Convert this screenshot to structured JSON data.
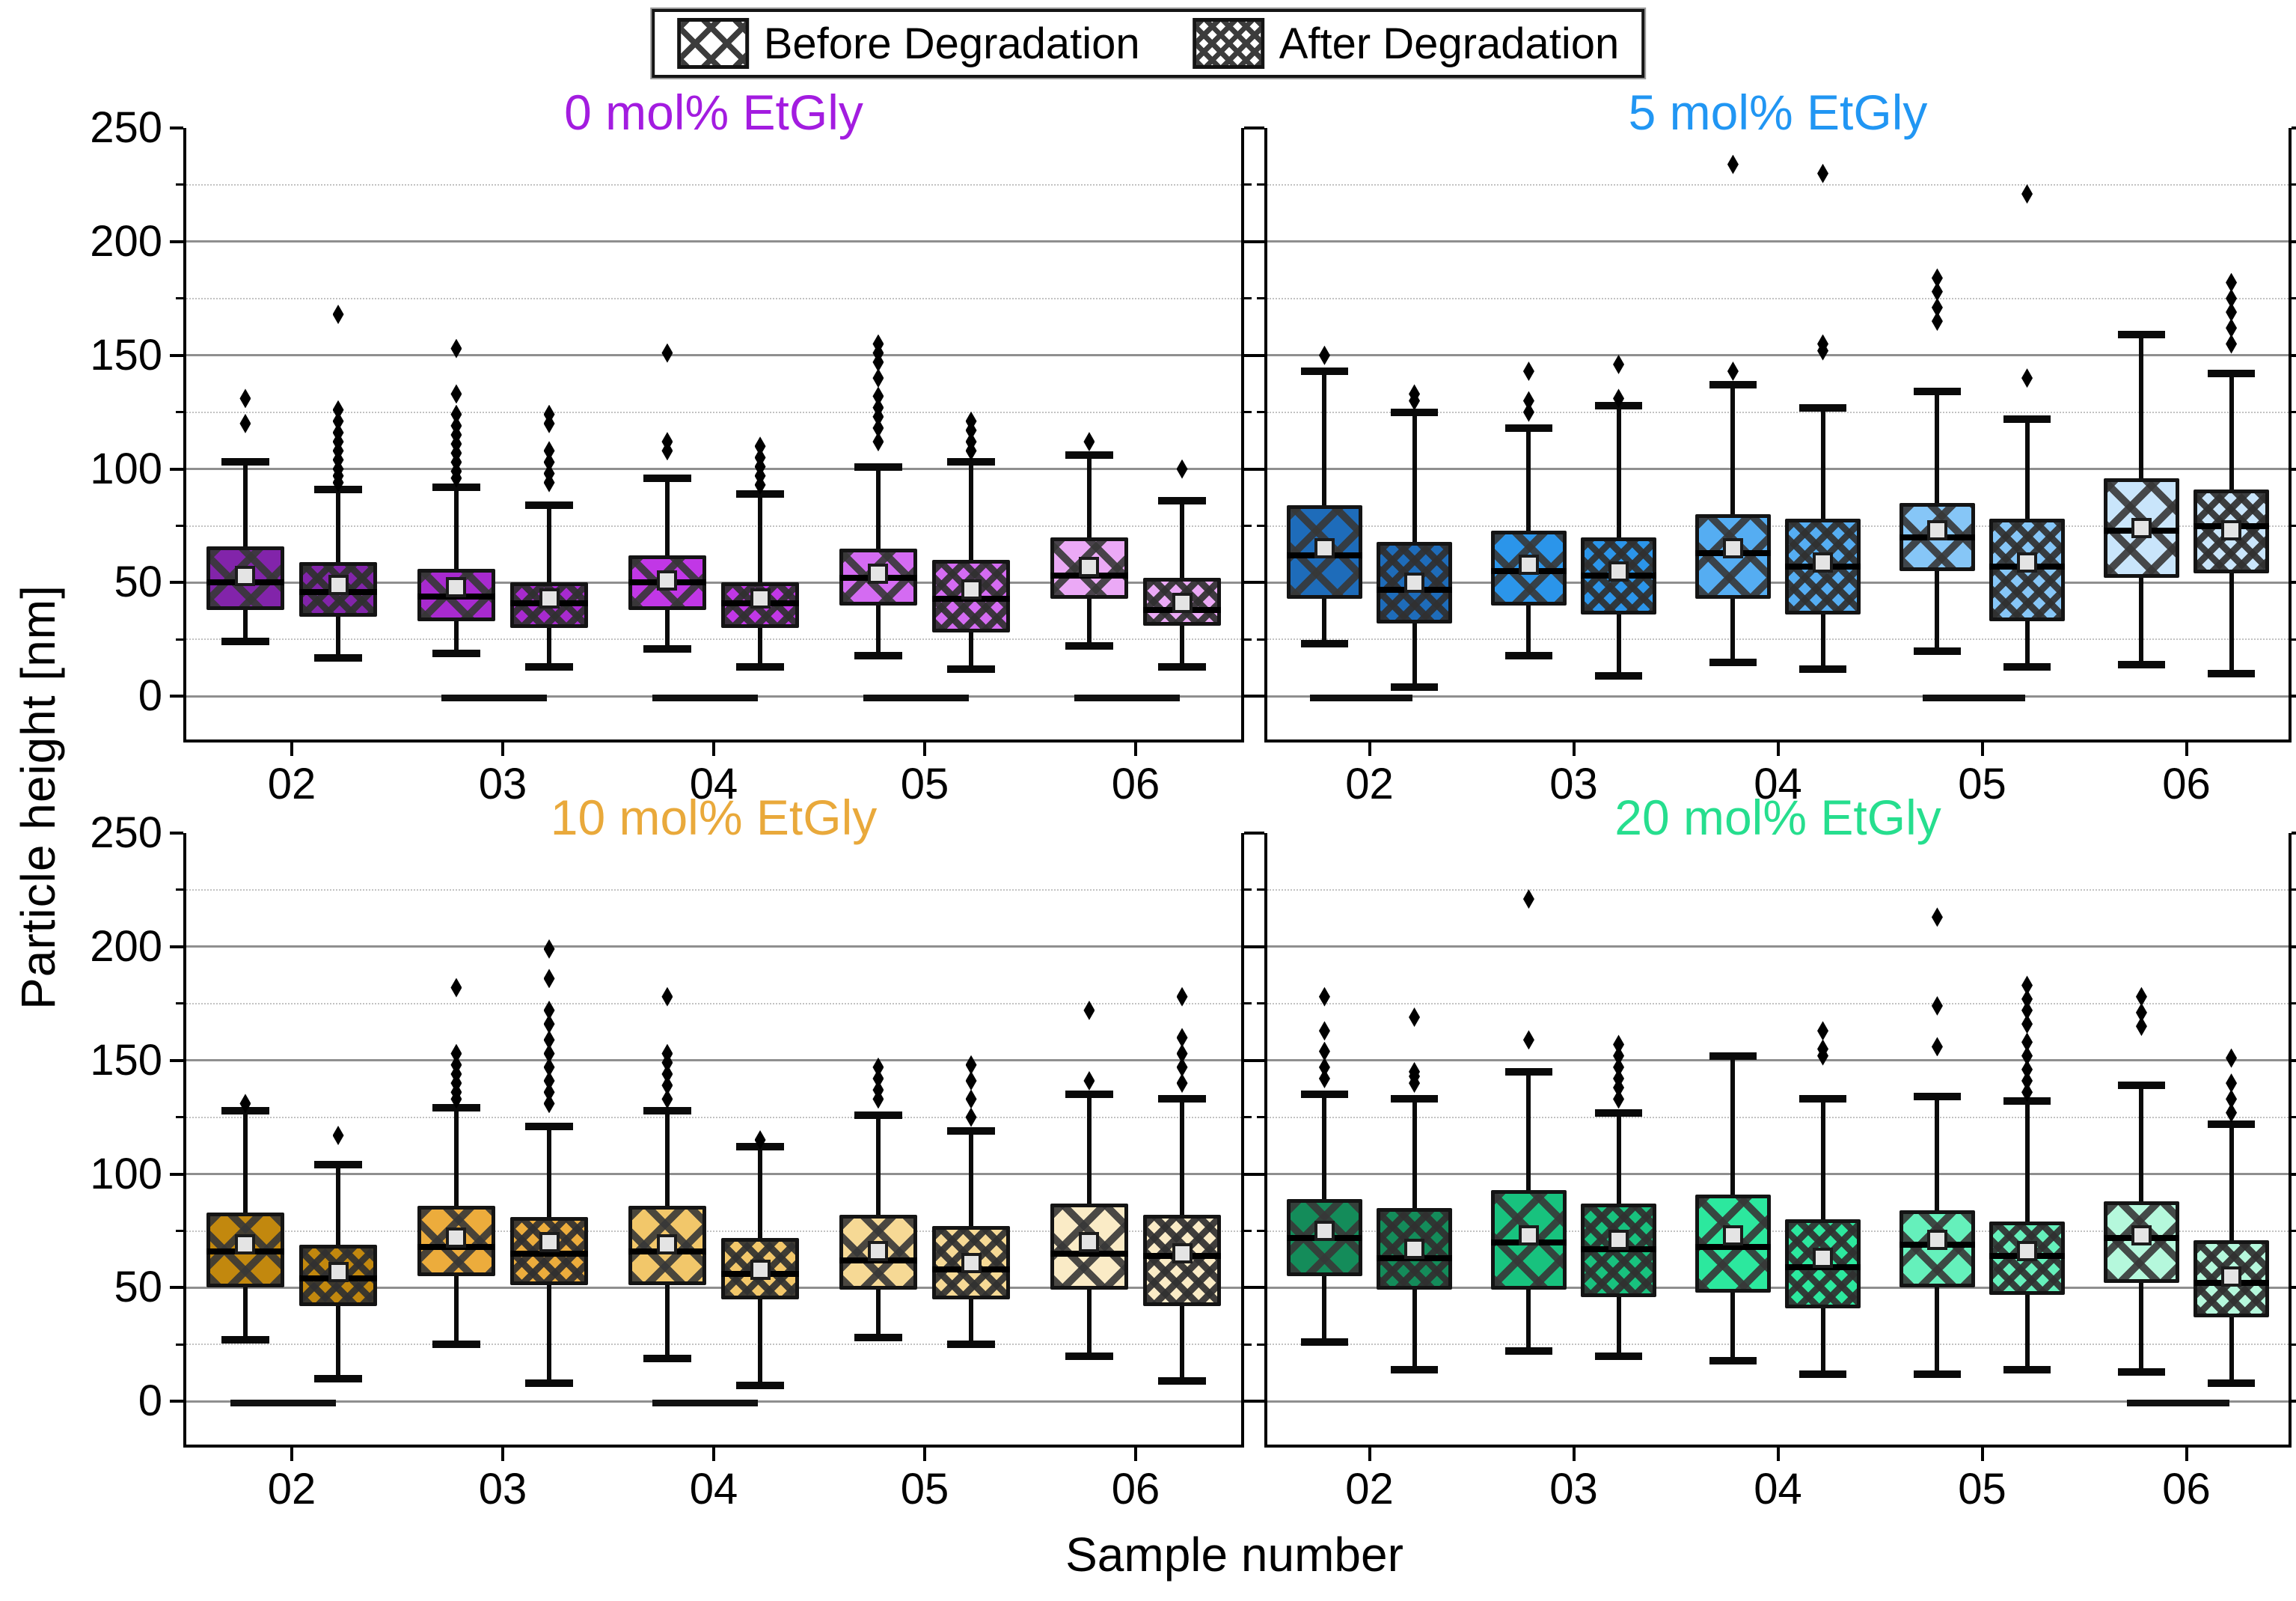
{
  "legend": {
    "items": [
      {
        "label": "Before Degradation",
        "pattern": "before"
      },
      {
        "label": "After Degradation",
        "pattern": "after"
      }
    ]
  },
  "axis": {
    "y_label": "Particle height [nm]",
    "x_label": "Sample number"
  },
  "chart_data": {
    "type": "box",
    "box_format": [
      "whisker_low",
      "q1",
      "median",
      "mean",
      "q3",
      "whisker_high",
      "outliers"
    ],
    "categories": [
      "02",
      "03",
      "04",
      "05",
      "06"
    ],
    "series_names": [
      "Before Degradation",
      "After Degradation"
    ],
    "y_label": "Particle height [nm]",
    "x_label": "Sample number",
    "ylim": [
      -19,
      250
    ],
    "y_major_ticks": [
      0,
      50,
      100,
      150,
      200,
      250
    ],
    "y_minor_ticks": [
      25,
      75,
      125,
      175,
      225
    ],
    "grid": "major-solid-minor-dotted",
    "legend_position": "top-center",
    "panels": [
      {
        "title": "0 mol% EtGly",
        "title_color": "#A31CE0",
        "grid_pos": [
          0,
          0
        ],
        "fill_colors": [
          "#8224AA",
          "#A82ACF",
          "#C137E6",
          "#D46BF2",
          "#EBA9F6"
        ],
        "zero_bars": [
          "03",
          "04",
          "05",
          "06"
        ],
        "before": [
          [
            24,
            38,
            50,
            53,
            66,
            103,
            [
              120,
              131
            ]
          ],
          [
            19,
            33,
            44,
            48,
            56,
            92,
            [
              96,
              99,
              103,
              107,
              111,
              115,
              119,
              124,
              133,
              153
            ]
          ],
          [
            21,
            38,
            50,
            51,
            62,
            96,
            [
              108,
              112,
              151
            ]
          ],
          [
            18,
            40,
            52,
            54,
            65,
            101,
            [
              112,
              118,
              123,
              127,
              132,
              140,
              147,
              151,
              155
            ]
          ],
          [
            22,
            43,
            53,
            57,
            70,
            106,
            [
              112
            ]
          ]
        ],
        "after": [
          [
            17,
            35,
            46,
            49,
            59,
            91,
            [
              94,
              97,
              100,
              104,
              108,
              112,
              116,
              121,
              126,
              168
            ]
          ],
          [
            13,
            30,
            41,
            43,
            50,
            84,
            [
              94,
              98,
              103,
              108,
              120,
              124
            ]
          ],
          [
            13,
            30,
            41,
            43,
            50,
            89,
            [
              93,
              97,
              101,
              105,
              110
            ]
          ],
          [
            12,
            28,
            43,
            47,
            60,
            103,
            [
              108,
              112,
              117,
              121
            ]
          ],
          [
            13,
            31,
            38,
            41,
            52,
            86,
            [
              100
            ]
          ]
        ]
      },
      {
        "title": "5 mol% EtGly",
        "title_color": "#2196F3",
        "grid_pos": [
          0,
          1
        ],
        "fill_colors": [
          "#1E6CBA",
          "#2B95EA",
          "#55ADF2",
          "#86C6F7",
          "#C9E5FB"
        ],
        "zero_bars": [
          "02",
          "05"
        ],
        "before": [
          [
            23,
            43,
            62,
            65,
            84,
            143,
            [
              150
            ]
          ],
          [
            18,
            40,
            55,
            58,
            73,
            118,
            [
              125,
              130,
              143
            ]
          ],
          [
            15,
            43,
            63,
            65,
            80,
            137,
            [
              143,
              234
            ]
          ],
          [
            20,
            55,
            70,
            73,
            85,
            134,
            [
              165,
              171,
              178,
              184
            ]
          ],
          [
            14,
            52,
            73,
            74,
            96,
            159,
            []
          ]
        ],
        "after": [
          [
            4,
            32,
            47,
            50,
            68,
            125,
            [
              130,
              133
            ]
          ],
          [
            9,
            36,
            53,
            55,
            70,
            128,
            [
              131,
              146
            ]
          ],
          [
            12,
            36,
            57,
            59,
            78,
            127,
            [
              152,
              155,
              230
            ]
          ],
          [
            13,
            33,
            57,
            59,
            78,
            122,
            [
              140,
              221
            ]
          ],
          [
            10,
            54,
            75,
            73,
            91,
            142,
            [
              155,
              162,
              169,
              175,
              182
            ]
          ]
        ]
      },
      {
        "title": "10 mol% EtGly",
        "title_color": "#E9A93B",
        "grid_pos": [
          1,
          0
        ],
        "fill_colors": [
          "#C2880E",
          "#ECAC3C",
          "#F2C76A",
          "#F6D995",
          "#FAEBC6"
        ],
        "zero_bars": [
          "02",
          "04"
        ],
        "before": [
          [
            27,
            50,
            66,
            69,
            83,
            128,
            [
              131
            ]
          ],
          [
            25,
            55,
            68,
            72,
            86,
            129,
            [
              133,
              136,
              140,
              144,
              148,
              153,
              182
            ]
          ],
          [
            19,
            51,
            66,
            69,
            86,
            128,
            [
              133,
              139,
              144,
              149,
              153,
              178
            ]
          ],
          [
            28,
            49,
            62,
            66,
            82,
            126,
            [
              133,
              137,
              142,
              147
            ]
          ],
          [
            20,
            49,
            65,
            70,
            87,
            135,
            [
              141,
              172
            ]
          ]
        ],
        "after": [
          [
            10,
            42,
            54,
            57,
            69,
            104,
            [
              117
            ]
          ],
          [
            8,
            51,
            65,
            70,
            81,
            121,
            [
              131,
              136,
              141,
              147,
              153,
              159,
              166,
              172,
              186,
              199
            ]
          ],
          [
            7,
            45,
            56,
            58,
            72,
            112,
            [
              115
            ]
          ],
          [
            25,
            45,
            58,
            61,
            77,
            119,
            [
              125,
              133,
              141,
              148
            ]
          ],
          [
            9,
            42,
            64,
            65,
            82,
            133,
            [
              140,
              147,
              153,
              160,
              178
            ]
          ]
        ]
      },
      {
        "title": "20 mol% EtGly",
        "title_color": "#26DE8E",
        "grid_pos": [
          1,
          1
        ],
        "fill_colors": [
          "#148C5A",
          "#18C27E",
          "#2CE89E",
          "#65F0BB",
          "#B5F8DC"
        ],
        "zero_bars": [
          "06"
        ],
        "before": [
          [
            26,
            55,
            72,
            75,
            89,
            135,
            [
              142,
              147,
              154,
              163,
              178
            ]
          ],
          [
            22,
            49,
            70,
            73,
            93,
            145,
            [
              159,
              221
            ]
          ],
          [
            18,
            48,
            68,
            73,
            91,
            152,
            []
          ],
          [
            12,
            50,
            69,
            71,
            84,
            134,
            [
              156,
              174,
              213
            ]
          ],
          [
            13,
            52,
            72,
            73,
            88,
            139,
            [
              165,
              171,
              178
            ]
          ]
        ],
        "after": [
          [
            14,
            49,
            63,
            67,
            85,
            133,
            [
              140,
              143,
              145,
              169
            ]
          ],
          [
            20,
            46,
            67,
            71,
            87,
            127,
            [
              133,
              138,
              142,
              147,
              152,
              157
            ]
          ],
          [
            12,
            41,
            59,
            63,
            80,
            133,
            [
              152,
              155,
              163
            ]
          ],
          [
            14,
            47,
            64,
            66,
            79,
            132,
            [
              136,
              141,
              146,
              152,
              158,
              166,
              172,
              177,
              183
            ]
          ],
          [
            8,
            37,
            52,
            55,
            71,
            122,
            [
              127,
              133,
              140,
              151
            ]
          ]
        ]
      }
    ]
  }
}
